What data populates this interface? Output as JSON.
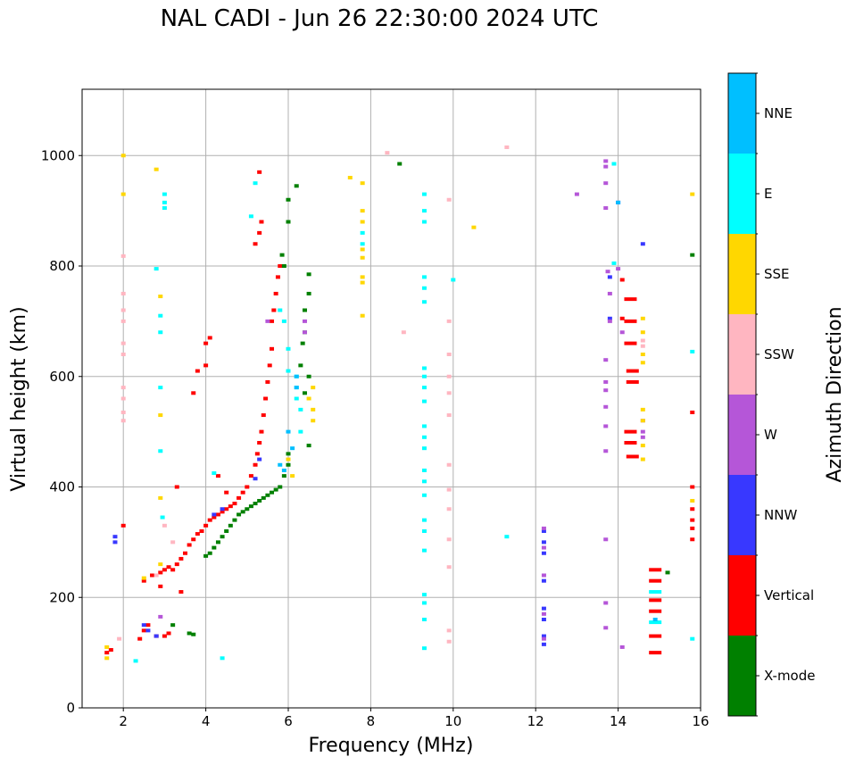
{
  "chart_data": {
    "type": "scatter",
    "title": "NAL CADI - Jun 26 22:30:00 2024 UTC",
    "xlabel": "Frequency (MHz)",
    "ylabel": "Virtual height (km)",
    "xlim": [
      1,
      16
    ],
    "ylim": [
      0,
      1120
    ],
    "xticks": [
      2,
      4,
      6,
      8,
      10,
      12,
      14,
      16
    ],
    "yticks": [
      0,
      200,
      400,
      600,
      800,
      1000
    ],
    "grid": true,
    "colorbar": {
      "label": "Azimuth Direction",
      "placement": "right",
      "categories": [
        {
          "name": "X-mode",
          "color": "#008000"
        },
        {
          "name": "Vertical",
          "color": "#ff0000"
        },
        {
          "name": "NNW",
          "color": "#3838ff"
        },
        {
          "name": "W",
          "color": "#b556d8"
        },
        {
          "name": "SSW",
          "color": "#ffb6c1"
        },
        {
          "name": "SSE",
          "color": "#ffd700"
        },
        {
          "name": "E",
          "color": "#00ffff"
        },
        {
          "name": "NNE",
          "color": "#00bfff"
        }
      ]
    },
    "series": [
      {
        "name": "Vertical",
        "points": [
          [
            1.6,
            100
          ],
          [
            1.7,
            105
          ],
          [
            2.4,
            125
          ],
          [
            2.5,
            140
          ],
          [
            2.6,
            150
          ],
          [
            2.8,
            130
          ],
          [
            3.0,
            130
          ],
          [
            3.1,
            135
          ],
          [
            2.5,
            230
          ],
          [
            2.7,
            240
          ],
          [
            2.9,
            245
          ],
          [
            3.0,
            250
          ],
          [
            3.1,
            255
          ],
          [
            3.2,
            250
          ],
          [
            3.3,
            260
          ],
          [
            3.4,
            270
          ],
          [
            3.5,
            280
          ],
          [
            3.6,
            295
          ],
          [
            3.7,
            305
          ],
          [
            3.8,
            315
          ],
          [
            3.9,
            320
          ],
          [
            4.0,
            330
          ],
          [
            4.1,
            340
          ],
          [
            4.2,
            345
          ],
          [
            4.3,
            350
          ],
          [
            4.4,
            355
          ],
          [
            4.5,
            360
          ],
          [
            4.6,
            365
          ],
          [
            4.7,
            370
          ],
          [
            4.8,
            380
          ],
          [
            4.9,
            390
          ],
          [
            5.0,
            400
          ],
          [
            5.1,
            420
          ],
          [
            5.2,
            440
          ],
          [
            5.25,
            460
          ],
          [
            5.3,
            480
          ],
          [
            5.35,
            500
          ],
          [
            5.4,
            530
          ],
          [
            5.45,
            560
          ],
          [
            5.5,
            590
          ],
          [
            5.55,
            620
          ],
          [
            5.6,
            650
          ],
          [
            5.6,
            700
          ],
          [
            5.65,
            720
          ],
          [
            5.7,
            750
          ],
          [
            5.75,
            780
          ],
          [
            5.8,
            800
          ],
          [
            5.2,
            840
          ],
          [
            5.3,
            860
          ],
          [
            5.35,
            880
          ],
          [
            5.3,
            970
          ],
          [
            4.0,
            660
          ],
          [
            4.1,
            670
          ],
          [
            3.8,
            610
          ],
          [
            3.7,
            570
          ],
          [
            4.5,
            390
          ],
          [
            4.3,
            420
          ],
          [
            3.3,
            400
          ],
          [
            4.0,
            620
          ],
          [
            14.3,
            740
          ],
          [
            14.3,
            700
          ],
          [
            14.3,
            660
          ],
          [
            14.35,
            610
          ],
          [
            14.35,
            590
          ],
          [
            14.3,
            500
          ],
          [
            14.3,
            480
          ],
          [
            14.35,
            455
          ],
          [
            14.1,
            775
          ],
          [
            14.1,
            705
          ],
          [
            14.9,
            250
          ],
          [
            14.9,
            230
          ],
          [
            14.9,
            195
          ],
          [
            14.9,
            175
          ],
          [
            14.9,
            130
          ],
          [
            14.9,
            100
          ],
          [
            15.8,
            535
          ],
          [
            15.8,
            400
          ],
          [
            15.8,
            360
          ],
          [
            15.8,
            340
          ],
          [
            15.8,
            325
          ],
          [
            15.8,
            305
          ],
          [
            2.0,
            330
          ],
          [
            2.9,
            220
          ],
          [
            3.4,
            210
          ]
        ]
      },
      {
        "name": "X-mode",
        "points": [
          [
            3.6,
            135
          ],
          [
            3.7,
            133
          ],
          [
            4.0,
            275
          ],
          [
            4.1,
            280
          ],
          [
            4.2,
            290
          ],
          [
            4.3,
            300
          ],
          [
            4.4,
            310
          ],
          [
            4.5,
            320
          ],
          [
            4.6,
            330
          ],
          [
            4.7,
            340
          ],
          [
            4.8,
            350
          ],
          [
            4.9,
            355
          ],
          [
            5.0,
            360
          ],
          [
            5.1,
            365
          ],
          [
            5.2,
            370
          ],
          [
            5.3,
            375
          ],
          [
            5.4,
            380
          ],
          [
            5.5,
            385
          ],
          [
            5.6,
            390
          ],
          [
            5.7,
            395
          ],
          [
            5.8,
            400
          ],
          [
            5.9,
            420
          ],
          [
            6.0,
            440
          ],
          [
            6.0,
            460
          ],
          [
            5.9,
            800
          ],
          [
            5.85,
            820
          ],
          [
            6.0,
            920
          ],
          [
            6.2,
            945
          ],
          [
            6.3,
            620
          ],
          [
            6.35,
            660
          ],
          [
            6.4,
            680
          ],
          [
            6.4,
            720
          ],
          [
            6.5,
            750
          ],
          [
            6.5,
            785
          ],
          [
            6.5,
            600
          ],
          [
            6.4,
            570
          ],
          [
            6.5,
            475
          ],
          [
            8.7,
            985
          ],
          [
            15.2,
            245
          ],
          [
            15.8,
            820
          ],
          [
            3.2,
            150
          ],
          [
            6.0,
            880
          ]
        ]
      },
      {
        "name": "NNW",
        "points": [
          [
            1.8,
            310
          ],
          [
            1.8,
            300
          ],
          [
            2.5,
            150
          ],
          [
            2.6,
            140
          ],
          [
            2.8,
            130
          ],
          [
            4.2,
            350
          ],
          [
            4.4,
            360
          ],
          [
            5.3,
            450
          ],
          [
            12.2,
            320
          ],
          [
            12.2,
            300
          ],
          [
            12.2,
            280
          ],
          [
            12.2,
            230
          ],
          [
            12.2,
            180
          ],
          [
            12.2,
            160
          ],
          [
            12.2,
            130
          ],
          [
            12.2,
            115
          ],
          [
            13.8,
            780
          ],
          [
            13.8,
            705
          ],
          [
            14.0,
            915
          ],
          [
            14.6,
            840
          ],
          [
            5.2,
            415
          ]
        ]
      },
      {
        "name": "W",
        "points": [
          [
            12.2,
            325
          ],
          [
            12.2,
            290
          ],
          [
            12.2,
            240
          ],
          [
            12.2,
            170
          ],
          [
            12.2,
            125
          ],
          [
            13.0,
            930
          ],
          [
            13.7,
            990
          ],
          [
            13.7,
            980
          ],
          [
            13.7,
            950
          ],
          [
            13.7,
            905
          ],
          [
            13.75,
            790
          ],
          [
            13.8,
            750
          ],
          [
            13.8,
            700
          ],
          [
            13.7,
            630
          ],
          [
            13.7,
            590
          ],
          [
            13.7,
            575
          ],
          [
            13.7,
            545
          ],
          [
            13.7,
            510
          ],
          [
            13.7,
            465
          ],
          [
            13.7,
            305
          ],
          [
            13.7,
            190
          ],
          [
            13.7,
            145
          ],
          [
            14.0,
            795
          ],
          [
            14.1,
            680
          ],
          [
            14.1,
            110
          ],
          [
            14.6,
            520
          ],
          [
            14.6,
            500
          ],
          [
            14.6,
            490
          ],
          [
            6.4,
            680
          ],
          [
            6.4,
            700
          ],
          [
            2.9,
            165
          ],
          [
            5.5,
            700
          ]
        ]
      },
      {
        "name": "SSW",
        "points": [
          [
            2.0,
            818
          ],
          [
            2.0,
            750
          ],
          [
            2.0,
            700
          ],
          [
            2.0,
            660
          ],
          [
            2.0,
            640
          ],
          [
            2.0,
            580
          ],
          [
            2.0,
            560
          ],
          [
            2.0,
            535
          ],
          [
            2.0,
            520
          ],
          [
            2.0,
            720
          ],
          [
            8.4,
            1005
          ],
          [
            9.9,
            920
          ],
          [
            9.9,
            700
          ],
          [
            9.9,
            640
          ],
          [
            9.9,
            600
          ],
          [
            9.9,
            570
          ],
          [
            9.9,
            530
          ],
          [
            9.9,
            440
          ],
          [
            9.9,
            395
          ],
          [
            9.9,
            360
          ],
          [
            9.9,
            305
          ],
          [
            9.9,
            255
          ],
          [
            9.9,
            140
          ],
          [
            9.9,
            120
          ],
          [
            8.8,
            680
          ],
          [
            11.3,
            1015
          ],
          [
            14.6,
            665
          ],
          [
            14.6,
            655
          ],
          [
            3.0,
            330
          ],
          [
            3.2,
            300
          ],
          [
            2.8,
            240
          ],
          [
            1.9,
            125
          ]
        ]
      },
      {
        "name": "SSE",
        "points": [
          [
            1.6,
            90
          ],
          [
            1.6,
            110
          ],
          [
            2.0,
            1000
          ],
          [
            2.0,
            930
          ],
          [
            2.8,
            975
          ],
          [
            2.9,
            745
          ],
          [
            2.9,
            530
          ],
          [
            2.9,
            380
          ],
          [
            2.9,
            260
          ],
          [
            7.5,
            960
          ],
          [
            7.8,
            950
          ],
          [
            7.8,
            900
          ],
          [
            7.8,
            880
          ],
          [
            7.8,
            830
          ],
          [
            7.8,
            815
          ],
          [
            7.8,
            780
          ],
          [
            7.8,
            770
          ],
          [
            7.8,
            710
          ],
          [
            10.5,
            870
          ],
          [
            6.6,
            520
          ],
          [
            6.6,
            540
          ],
          [
            6.5,
            560
          ],
          [
            6.6,
            580
          ],
          [
            14.6,
            705
          ],
          [
            14.6,
            680
          ],
          [
            14.6,
            640
          ],
          [
            14.6,
            625
          ],
          [
            14.6,
            540
          ],
          [
            14.6,
            520
          ],
          [
            14.6,
            475
          ],
          [
            14.6,
            450
          ],
          [
            15.8,
            930
          ],
          [
            15.8,
            375
          ],
          [
            6.1,
            420
          ],
          [
            6.0,
            450
          ],
          [
            2.5,
            235
          ]
        ]
      },
      {
        "name": "E",
        "points": [
          [
            2.3,
            85
          ],
          [
            2.8,
            795
          ],
          [
            2.9,
            710
          ],
          [
            2.9,
            680
          ],
          [
            2.9,
            580
          ],
          [
            2.9,
            465
          ],
          [
            2.95,
            345
          ],
          [
            3.0,
            930
          ],
          [
            3.0,
            915
          ],
          [
            3.0,
            905
          ],
          [
            4.2,
            425
          ],
          [
            4.4,
            90
          ],
          [
            5.1,
            890
          ],
          [
            5.2,
            950
          ],
          [
            5.8,
            720
          ],
          [
            5.9,
            700
          ],
          [
            6.0,
            650
          ],
          [
            6.0,
            610
          ],
          [
            6.2,
            600
          ],
          [
            6.2,
            580
          ],
          [
            6.2,
            560
          ],
          [
            6.3,
            540
          ],
          [
            6.3,
            500
          ],
          [
            7.8,
            860
          ],
          [
            7.8,
            840
          ],
          [
            9.3,
            930
          ],
          [
            9.3,
            900
          ],
          [
            9.3,
            880
          ],
          [
            9.3,
            780
          ],
          [
            9.3,
            760
          ],
          [
            9.3,
            735
          ],
          [
            9.3,
            615
          ],
          [
            9.3,
            600
          ],
          [
            9.3,
            580
          ],
          [
            9.3,
            555
          ],
          [
            9.3,
            510
          ],
          [
            9.3,
            490
          ],
          [
            9.3,
            470
          ],
          [
            9.3,
            430
          ],
          [
            9.3,
            410
          ],
          [
            9.3,
            385
          ],
          [
            9.3,
            340
          ],
          [
            9.3,
            320
          ],
          [
            9.3,
            285
          ],
          [
            9.3,
            205
          ],
          [
            9.3,
            190
          ],
          [
            9.3,
            160
          ],
          [
            9.3,
            108
          ],
          [
            10.0,
            775
          ],
          [
            11.3,
            310
          ],
          [
            13.9,
            985
          ],
          [
            13.9,
            805
          ],
          [
            14.9,
            210
          ],
          [
            14.9,
            155
          ],
          [
            15.8,
            645
          ],
          [
            15.8,
            125
          ]
        ]
      },
      {
        "name": "NNE",
        "points": [
          [
            6.2,
            580
          ],
          [
            6.2,
            600
          ],
          [
            6.0,
            500
          ],
          [
            6.1,
            470
          ],
          [
            14.0,
            915
          ],
          [
            14.9,
            160
          ],
          [
            5.8,
            440
          ],
          [
            5.9,
            430
          ]
        ]
      }
    ]
  }
}
